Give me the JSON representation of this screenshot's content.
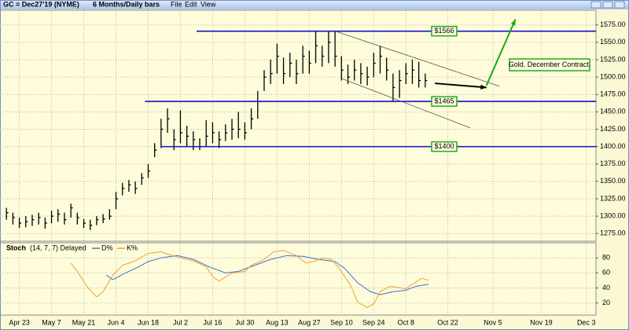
{
  "toolbar": {
    "symbol": "GC = Dec27'19 (NYME)",
    "period": "6 Months/Daily bars",
    "menus": [
      "File",
      "Edit",
      "View"
    ]
  },
  "chart_data": [
    {
      "type": "ohlc",
      "x": [
        0,
        2,
        4,
        6,
        8,
        10,
        12,
        14,
        16,
        18,
        20,
        22,
        24,
        26,
        28,
        30,
        32,
        34,
        36,
        38,
        40,
        42,
        44,
        46,
        48,
        50,
        52,
        54,
        56,
        58,
        60,
        62,
        64,
        66,
        68,
        70,
        72,
        74,
        76,
        78,
        80,
        82,
        84,
        86,
        88,
        90,
        92,
        94,
        96,
        98,
        100,
        102,
        104,
        106,
        108,
        110,
        112,
        114,
        116,
        118,
        120,
        122,
        124,
        126,
        128,
        130
      ],
      "high": [
        1312,
        1305,
        1298,
        1300,
        1302,
        1305,
        1298,
        1308,
        1310,
        1305,
        1318,
        1305,
        1296,
        1295,
        1300,
        1303,
        1310,
        1335,
        1348,
        1352,
        1350,
        1362,
        1375,
        1405,
        1440,
        1455,
        1425,
        1452,
        1430,
        1422,
        1412,
        1438,
        1435,
        1422,
        1432,
        1440,
        1450,
        1435,
        1455,
        1480,
        1510,
        1525,
        1548,
        1528,
        1535,
        1525,
        1545,
        1538,
        1566,
        1545,
        1566,
        1566,
        1530,
        1518,
        1525,
        1520,
        1515,
        1535,
        1545,
        1528,
        1505,
        1510,
        1520,
        1525,
        1522,
        1505
      ],
      "low": [
        1295,
        1288,
        1283,
        1284,
        1286,
        1288,
        1282,
        1290,
        1292,
        1288,
        1298,
        1288,
        1283,
        1280,
        1287,
        1290,
        1295,
        1310,
        1330,
        1335,
        1332,
        1345,
        1355,
        1385,
        1398,
        1420,
        1395,
        1405,
        1400,
        1395,
        1395,
        1400,
        1405,
        1398,
        1408,
        1410,
        1412,
        1410,
        1425,
        1440,
        1480,
        1490,
        1505,
        1490,
        1500,
        1490,
        1505,
        1505,
        1520,
        1515,
        1520,
        1515,
        1495,
        1490,
        1495,
        1490,
        1488,
        1500,
        1505,
        1495,
        1465,
        1470,
        1490,
        1490,
        1485,
        1485
      ],
      "close": [
        1305,
        1298,
        1290,
        1292,
        1295,
        1298,
        1290,
        1300,
        1303,
        1295,
        1312,
        1298,
        1290,
        1287,
        1295,
        1296,
        1300,
        1325,
        1340,
        1345,
        1340,
        1355,
        1365,
        1395,
        1425,
        1440,
        1410,
        1420,
        1415,
        1410,
        1400,
        1415,
        1420,
        1410,
        1420,
        1425,
        1425,
        1420,
        1440,
        1465,
        1500,
        1505,
        1530,
        1505,
        1520,
        1505,
        1530,
        1520,
        1545,
        1530,
        1550,
        1530,
        1510,
        1500,
        1510,
        1505,
        1500,
        1520,
        1530,
        1510,
        1485,
        1495,
        1505,
        1510,
        1495,
        1495
      ],
      "color": "#000000",
      "xlim": [
        -2,
        183
      ],
      "xticks": [
        {
          "value": 4,
          "label": "Apr 23"
        },
        {
          "value": 14,
          "label": "May 7"
        },
        {
          "value": 24,
          "label": "May 21"
        },
        {
          "value": 34,
          "label": "Jun 4"
        },
        {
          "value": 44,
          "label": "Jun 18"
        },
        {
          "value": 54,
          "label": "Jul 2"
        },
        {
          "value": 64,
          "label": "Jul 16"
        },
        {
          "value": 74,
          "label": "Jul 30"
        },
        {
          "value": 84,
          "label": "Aug 13"
        },
        {
          "value": 94,
          "label": "Aug 27"
        },
        {
          "value": 104,
          "label": "Sep 10"
        },
        {
          "value": 114,
          "label": "Sep 24"
        },
        {
          "value": 124,
          "label": "Oct 8"
        },
        {
          "value": 137,
          "label": "Oct 22"
        },
        {
          "value": 151,
          "label": "Nov 5"
        },
        {
          "value": 166,
          "label": "Nov 19"
        },
        {
          "value": 180,
          "label": "Dec 3"
        }
      ],
      "ylim": [
        1264,
        1595
      ],
      "yticks": [
        {
          "value": 1275,
          "label": "1275.00"
        },
        {
          "value": 1300,
          "label": "1300.00"
        },
        {
          "value": 1325,
          "label": "1325.00"
        },
        {
          "value": 1350,
          "label": "1350.00"
        },
        {
          "value": 1375,
          "label": "1375.00"
        },
        {
          "value": 1400,
          "label": "1400.00"
        },
        {
          "value": 1425,
          "label": "1425.00"
        },
        {
          "value": 1450,
          "label": "1450.00"
        },
        {
          "value": 1475,
          "label": "1475.00"
        },
        {
          "value": 1500,
          "label": "1500.00"
        },
        {
          "value": 1525,
          "label": "1525.00"
        },
        {
          "value": 1550,
          "label": "1550.00"
        },
        {
          "value": 1575,
          "label": "1575.00"
        }
      ],
      "grid": true,
      "levels": [
        {
          "value": 1566,
          "label": "$1566",
          "x_start": 59,
          "color": "#1212c8"
        },
        {
          "value": 1465,
          "label": "$1465",
          "x_start": 43,
          "color": "#1212c8"
        },
        {
          "value": 1400,
          "label": "$1400",
          "x_start": 48,
          "color": "#1212c8"
        }
      ],
      "channel": [
        {
          "x": [
            102,
            153
          ],
          "y": [
            1566,
            1487
          ]
        },
        {
          "x": [
            104,
            144
          ],
          "y": [
            1498,
            1427
          ]
        }
      ],
      "arrows": [
        {
          "x": [
            133,
            149
          ],
          "y": [
            1491,
            1485
          ],
          "color": "#000000"
        },
        {
          "x": [
            149,
            158
          ],
          "y": [
            1488,
            1583
          ],
          "color": "#1aa81a"
        }
      ],
      "note": "Gold. December Contract."
    },
    {
      "type": "line",
      "title": "Stoch",
      "subtitle": "(14, 7, 7) Delayed",
      "series": [
        {
          "name": "D%",
          "color": "#3f6fd1",
          "x": [
            31,
            33,
            37,
            41,
            44,
            48,
            53,
            58,
            63,
            68,
            72,
            77,
            82,
            87,
            92,
            97,
            102,
            105,
            109,
            113,
            116,
            120,
            124,
            127,
            131
          ],
          "values": [
            57,
            51,
            60,
            68,
            75,
            80,
            83,
            78,
            68,
            60,
            62,
            70,
            78,
            83,
            82,
            78,
            75,
            66,
            47,
            35,
            31,
            35,
            37,
            42,
            45
          ]
        },
        {
          "name": "K%",
          "color": "#f0a030",
          "x": [
            20,
            22,
            25,
            28,
            30,
            33,
            36,
            40,
            44,
            48,
            50,
            54,
            58,
            62,
            64,
            66,
            70,
            74,
            76,
            80,
            83,
            86,
            90,
            93,
            96,
            98,
            101,
            104,
            107,
            109,
            112,
            114,
            116,
            119,
            121,
            124,
            126,
            129,
            131
          ],
          "values": [
            73,
            62,
            42,
            28,
            35,
            57,
            70,
            76,
            86,
            88,
            85,
            80,
            76,
            68,
            55,
            49,
            60,
            62,
            70,
            78,
            88,
            90,
            83,
            73,
            76,
            80,
            78,
            62,
            42,
            21,
            14,
            19,
            35,
            42,
            41,
            39,
            45,
            53,
            50
          ]
        }
      ],
      "ylim": [
        5,
        99
      ],
      "yticks": [
        20,
        40,
        60,
        80
      ],
      "grid": true
    }
  ]
}
